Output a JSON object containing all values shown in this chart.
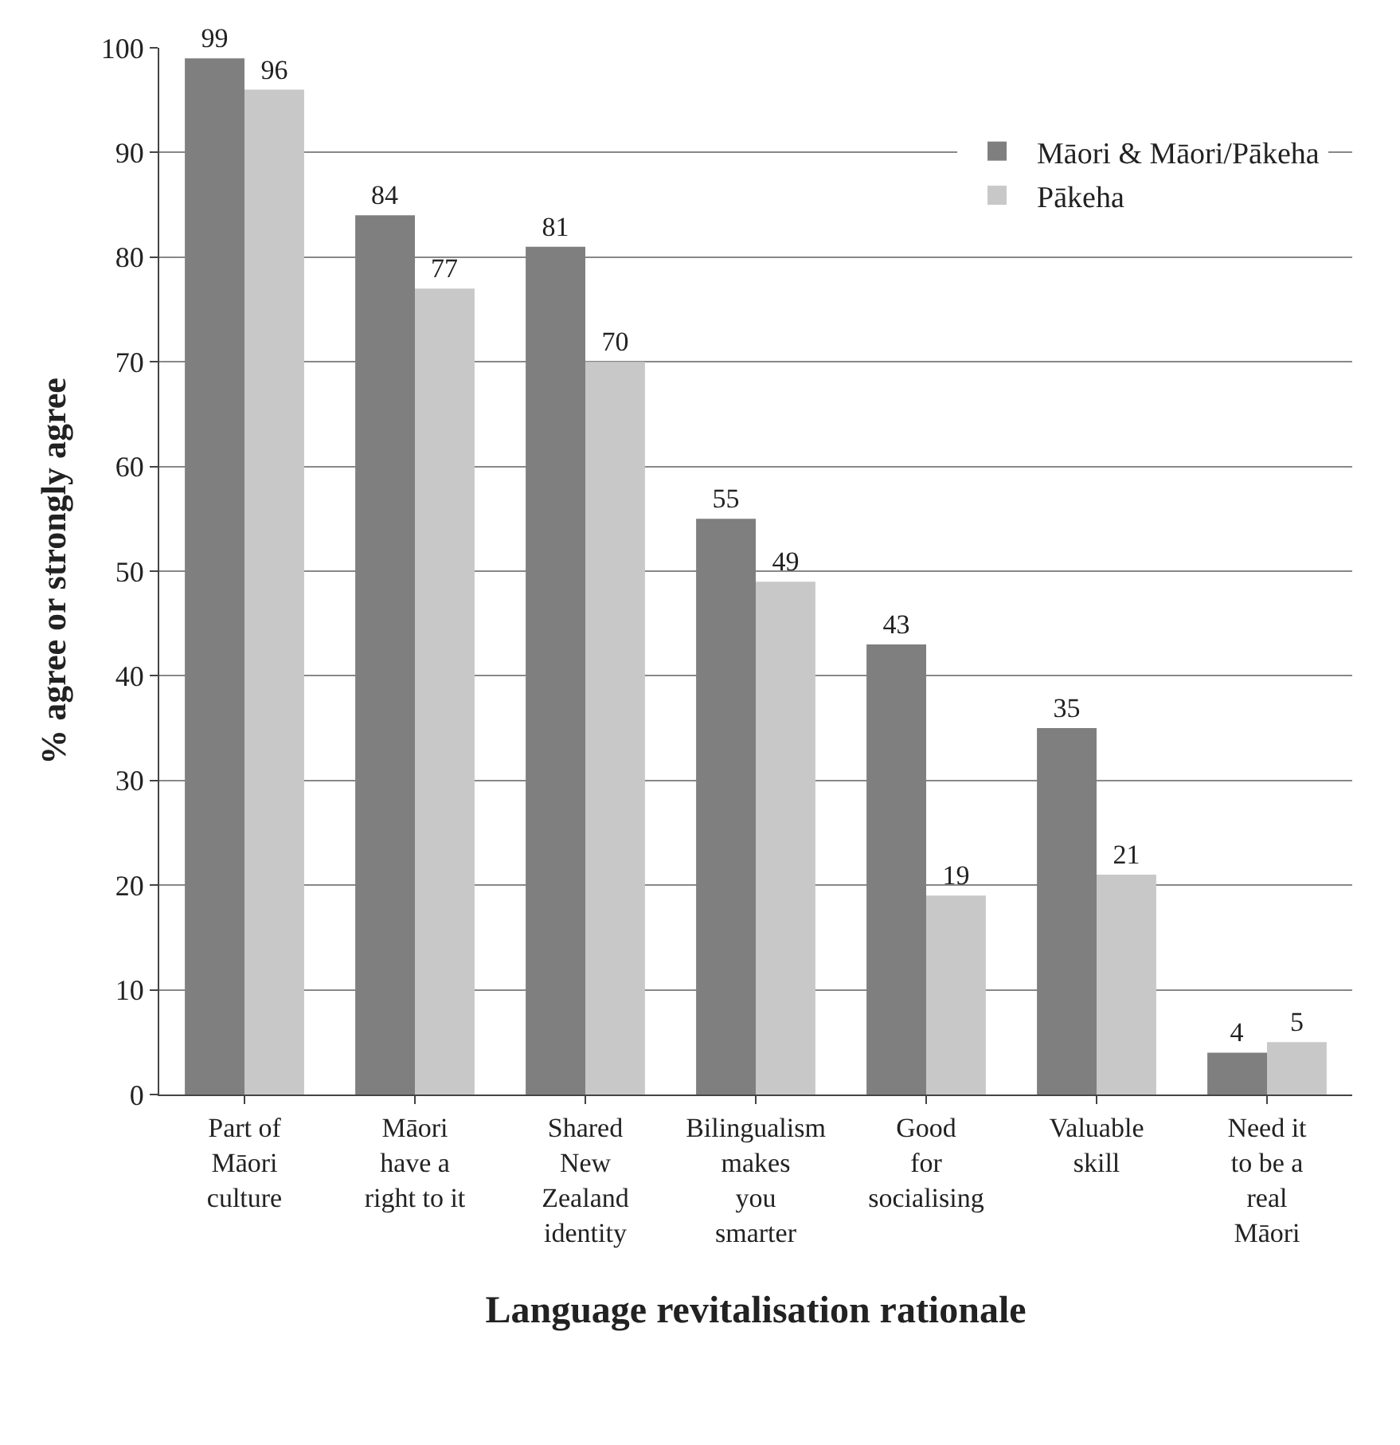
{
  "chart_data": {
    "type": "bar",
    "xlabel": "Language revitalisation rationale",
    "ylabel": "% agree or strongly agree",
    "categories": [
      "Part of\nMāori\nculture",
      "Māori\nhave a\nright to it",
      "Shared\nNew\nZealand\nidentity",
      "Bilingualism\nmakes\nyou\nsmarter",
      "Good\nfor\nsocialising",
      "Valuable\nskill",
      "Need it\nto be a\nreal\nMāori"
    ],
    "series": [
      {
        "name": "Māori & Māori/Pākeha",
        "color": "#7f7f7f",
        "values": [
          99,
          84,
          81,
          55,
          43,
          35,
          4
        ]
      },
      {
        "name": "Pākeha",
        "color": "#c8c8c8",
        "values": [
          96,
          77,
          70,
          49,
          19,
          21,
          5
        ]
      }
    ],
    "ylim": [
      0,
      100
    ],
    "yticks": [
      0,
      10,
      20,
      30,
      40,
      50,
      60,
      70,
      80,
      90,
      100
    ],
    "grid": "y",
    "legend": "top right",
    "data_labels": true
  }
}
